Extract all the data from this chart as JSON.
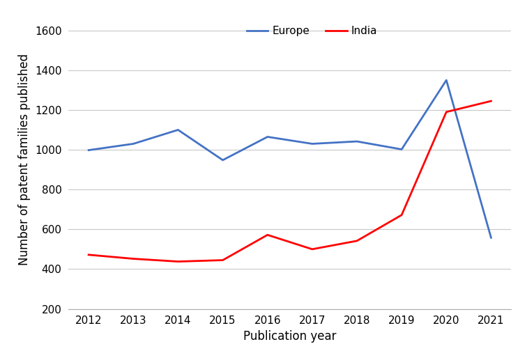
{
  "years": [
    2012,
    2013,
    2014,
    2015,
    2016,
    2017,
    2018,
    2019,
    2020,
    2021
  ],
  "europe": [
    998,
    1030,
    1100,
    948,
    1065,
    1030,
    1042,
    1002,
    1350,
    558
  ],
  "india": [
    472,
    452,
    438,
    445,
    572,
    500,
    542,
    672,
    1190,
    1245
  ],
  "europe_color": "#4472C4",
  "india_color": "#FF0000",
  "europe_label": "Europe",
  "india_label": "India",
  "xlabel": "Publication year",
  "ylabel": "Number of patent families published",
  "ylim": [
    200,
    1700
  ],
  "yticks": [
    200,
    400,
    600,
    800,
    1000,
    1200,
    1400,
    1600
  ],
  "line_width": 2.0,
  "background_color": "#ffffff",
  "grid_color": "#c8c8c8",
  "label_fontsize": 12,
  "tick_fontsize": 11,
  "legend_fontsize": 11
}
